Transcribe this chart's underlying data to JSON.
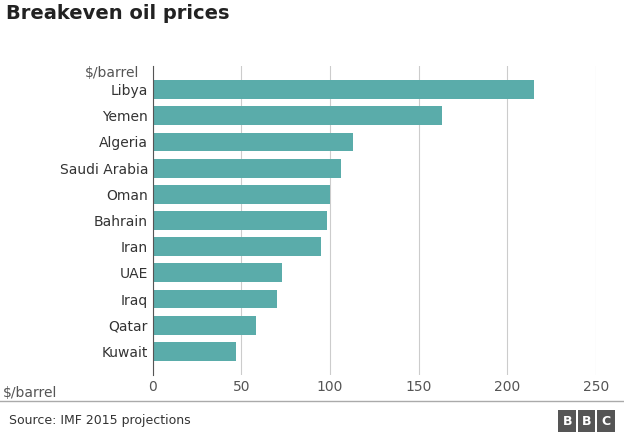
{
  "title": "Breakeven oil prices",
  "countries": [
    "Libya",
    "Yemen",
    "Algeria",
    "Saudi Arabia",
    "Oman",
    "Bahrain",
    "Iran",
    "UAE",
    "Iraq",
    "Qatar",
    "Kuwait"
  ],
  "values": [
    215,
    163,
    113,
    106,
    100,
    98,
    95,
    73,
    70,
    58,
    47
  ],
  "bar_color": "#5aacaa",
  "background_color": "#ffffff",
  "footer_bg": "#dddddd",
  "xlabel_label": "$/barrel",
  "xlim": [
    0,
    250
  ],
  "xticks": [
    0,
    50,
    100,
    150,
    200,
    250
  ],
  "title_fontsize": 14,
  "label_fontsize": 10,
  "tick_fontsize": 10,
  "source_text": "Source: IMF 2015 projections",
  "bbc_letters": [
    "B",
    "B",
    "C"
  ]
}
